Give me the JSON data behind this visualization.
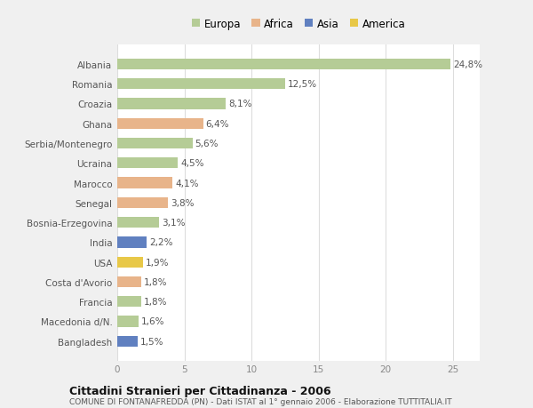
{
  "categories": [
    "Albania",
    "Romania",
    "Croazia",
    "Ghana",
    "Serbia/Montenegro",
    "Ucraina",
    "Marocco",
    "Senegal",
    "Bosnia-Erzegovina",
    "India",
    "USA",
    "Costa d'Avorio",
    "Francia",
    "Macedonia d/N.",
    "Bangladesh"
  ],
  "values": [
    24.8,
    12.5,
    8.1,
    6.4,
    5.6,
    4.5,
    4.1,
    3.8,
    3.1,
    2.2,
    1.9,
    1.8,
    1.8,
    1.6,
    1.5
  ],
  "labels": [
    "24,8%",
    "12,5%",
    "8,1%",
    "6,4%",
    "5,6%",
    "4,5%",
    "4,1%",
    "3,8%",
    "3,1%",
    "2,2%",
    "1,9%",
    "1,8%",
    "1,8%",
    "1,6%",
    "1,5%"
  ],
  "continents": [
    "Europa",
    "Europa",
    "Europa",
    "Africa",
    "Europa",
    "Europa",
    "Africa",
    "Africa",
    "Europa",
    "Asia",
    "America",
    "Africa",
    "Europa",
    "Europa",
    "Asia"
  ],
  "colors": {
    "Europa": "#b5cc96",
    "Africa": "#e8b48a",
    "Asia": "#6080c0",
    "America": "#e8c848"
  },
  "legend_order": [
    "Europa",
    "Africa",
    "Asia",
    "America"
  ],
  "xlim": [
    0,
    27
  ],
  "xticks": [
    0,
    5,
    10,
    15,
    20,
    25
  ],
  "background_color": "#f0f0f0",
  "bar_background": "#ffffff",
  "title": "Cittadini Stranieri per Cittadinanza - 2006",
  "subtitle": "COMUNE DI FONTANAFREDDA (PN) - Dati ISTAT al 1° gennaio 2006 - Elaborazione TUTTITALIA.IT",
  "grid_color": "#dddddd",
  "label_fontsize": 7.5,
  "tick_fontsize": 7.5,
  "bar_height": 0.55
}
